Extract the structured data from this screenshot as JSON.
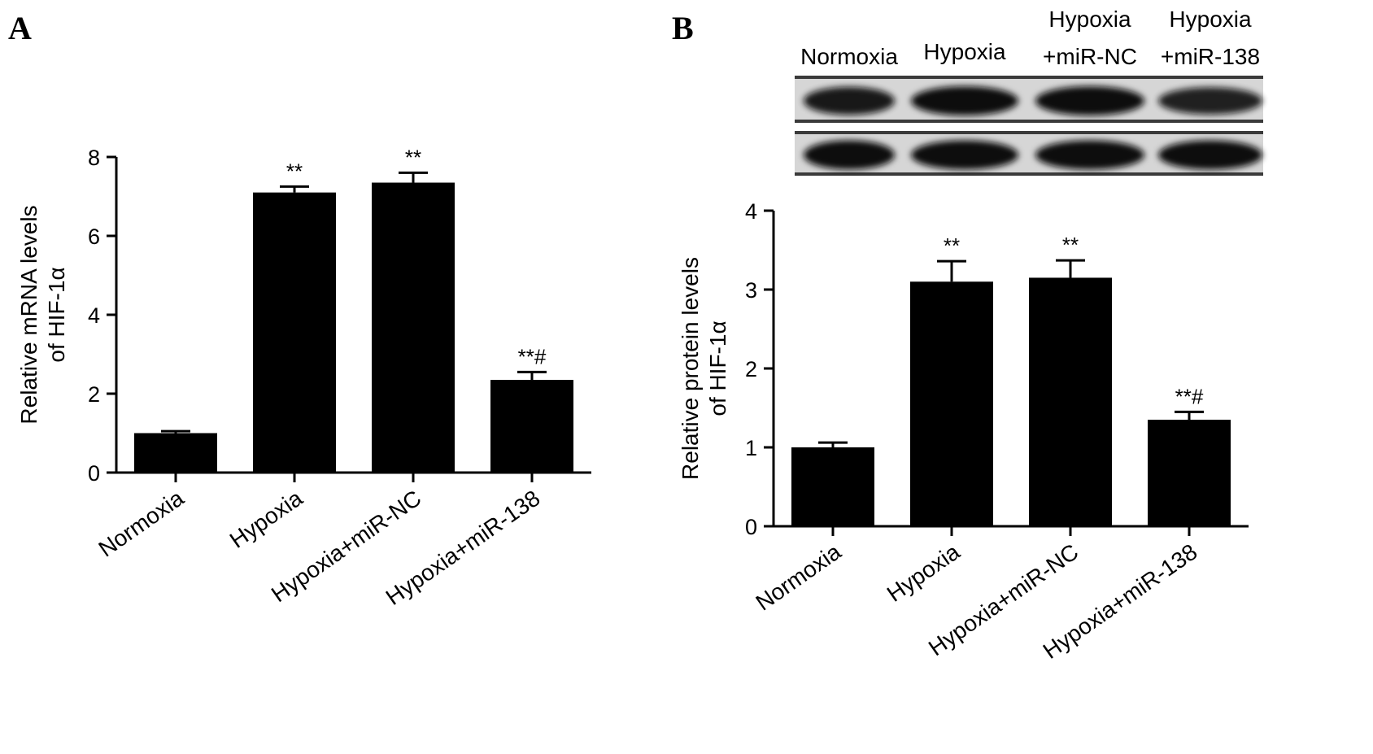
{
  "chart_data": [
    {
      "type": "bar",
      "panel": "A",
      "categories": [
        "Normoxia",
        "Hypoxia",
        "Hypoxia+miR-NC",
        "Hypoxia+miR-138"
      ],
      "series": [
        {
          "values": [
            1.0,
            7.1,
            7.35,
            2.35
          ],
          "errors": [
            0.05,
            0.15,
            0.25,
            0.2
          ]
        }
      ],
      "annotations": [
        "",
        "**",
        "**",
        "**#"
      ],
      "ylabel_lines": [
        "Relative mRNA levels",
        "of HIF-1α"
      ],
      "ylim": [
        0,
        8
      ],
      "yticks": [
        0,
        2,
        4,
        6,
        8
      ],
      "grid": false,
      "bar_color": "#000000"
    },
    {
      "type": "bar",
      "panel": "B",
      "categories": [
        "Normoxia",
        "Hypoxia",
        "Hypoxia+miR-NC",
        "Hypoxia+miR-138"
      ],
      "series": [
        {
          "values": [
            1.0,
            3.1,
            3.15,
            1.35
          ],
          "errors": [
            0.06,
            0.26,
            0.22,
            0.1
          ]
        }
      ],
      "annotations": [
        "",
        "**",
        "**",
        "**#"
      ],
      "ylabel_lines": [
        "Relative protein levels",
        "of HIF-1α"
      ],
      "ylim": [
        0,
        4
      ],
      "yticks": [
        0,
        1,
        2,
        3,
        4
      ],
      "grid": false,
      "bar_color": "#000000"
    }
  ],
  "blot": {
    "lane_labels": [
      {
        "lines": [
          "Normoxia"
        ]
      },
      {
        "lines": [
          "Hypoxia"
        ]
      },
      {
        "lines": [
          "Hypoxia",
          "+miR-NC"
        ]
      },
      {
        "lines": [
          "Hypoxia",
          "+miR-138"
        ]
      }
    ],
    "rows": [
      {
        "band_intensity": [
          0.85,
          1.0,
          1.0,
          0.75
        ]
      },
      {
        "band_intensity": [
          1.0,
          1.0,
          1.0,
          1.0
        ]
      }
    ]
  }
}
